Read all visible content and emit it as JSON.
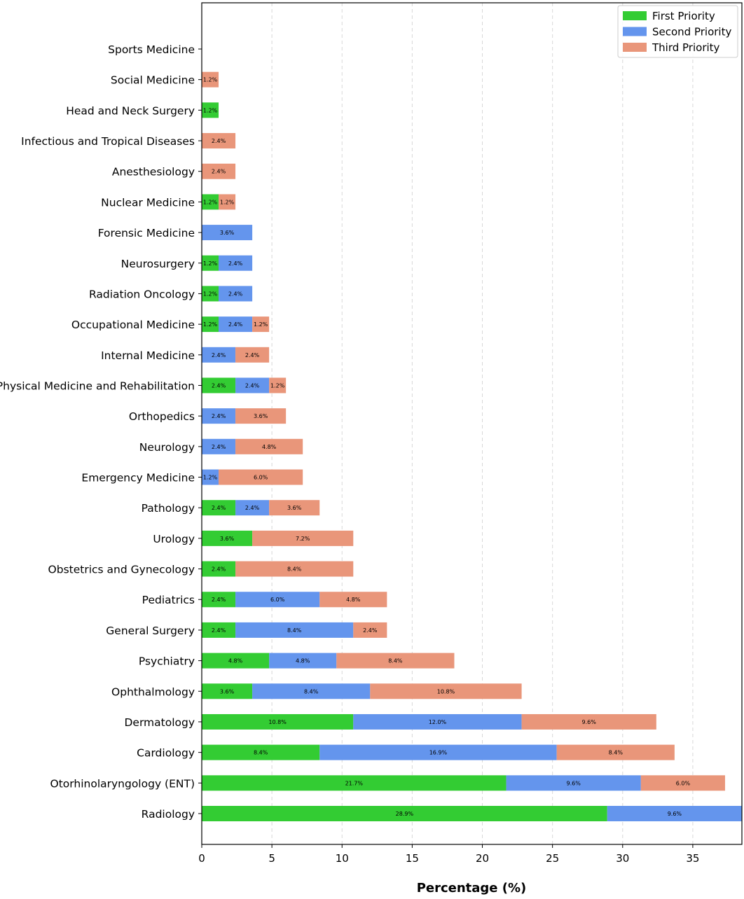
{
  "chart_data": {
    "type": "bar",
    "orientation": "horizontal",
    "stacked": true,
    "title": "",
    "xlabel": "Percentage (%)",
    "ylabel": "",
    "xlim": [
      0,
      38.5
    ],
    "xticks": [
      0,
      5,
      10,
      15,
      20,
      25,
      30,
      35
    ],
    "grid": "vertical-dashed",
    "legend_position": "top-right",
    "categories": [
      "Radiology",
      "Otorhinolaryngology (ENT)",
      "Cardiology",
      "Dermatology",
      "Ophthalmology",
      "Psychiatry",
      "General Surgery",
      "Pediatrics",
      "Obstetrics and Gynecology",
      "Urology",
      "Pathology",
      "Emergency Medicine",
      "Neurology",
      "Orthopedics",
      "Physical Medicine and Rehabilitation",
      "Internal Medicine",
      "Occupational Medicine",
      "Radiation Oncology",
      "Neurosurgery",
      "Forensic Medicine",
      "Nuclear Medicine",
      "Anesthesiology",
      "Infectious and Tropical Diseases",
      "Head and Neck Surgery",
      "Social Medicine",
      "Sports Medicine"
    ],
    "series": [
      {
        "name": "First Priority",
        "color": "#33cc33",
        "values": [
          28.9,
          21.7,
          8.4,
          10.8,
          3.6,
          4.8,
          2.4,
          2.4,
          2.4,
          3.6,
          2.4,
          0,
          0,
          0,
          2.4,
          0,
          1.2,
          1.2,
          1.2,
          0,
          1.2,
          0,
          0,
          1.2,
          0,
          0
        ],
        "labels": [
          "28.9%",
          "21.7%",
          "8.4%",
          "10.8%",
          "3.6%",
          "4.8%",
          "2.4%",
          "2.4%",
          "2.4%",
          "3.6%",
          "2.4%",
          "",
          "",
          "",
          "2.4%",
          "",
          "1.2%",
          "1.2%",
          "1.2%",
          "",
          "1.2%",
          "",
          "",
          "1.2%",
          "",
          ""
        ]
      },
      {
        "name": "Second Priority",
        "color": "#6495ed",
        "values": [
          9.6,
          9.6,
          16.9,
          12.0,
          8.4,
          4.8,
          8.4,
          6.0,
          0,
          0,
          2.4,
          1.2,
          2.4,
          2.4,
          2.4,
          2.4,
          2.4,
          2.4,
          2.4,
          3.6,
          0,
          0,
          0,
          0,
          0,
          0
        ],
        "labels": [
          "9.6%",
          "9.6%",
          "16.9%",
          "12.0%",
          "8.4%",
          "4.8%",
          "8.4%",
          "6.0%",
          "",
          "",
          "2.4%",
          "1.2%",
          "2.4%",
          "2.4%",
          "2.4%",
          "2.4%",
          "2.4%",
          "2.4%",
          "2.4%",
          "3.6%",
          "",
          "",
          "",
          "",
          "",
          ""
        ]
      },
      {
        "name": "Third Priority",
        "color": "#e9967a",
        "values": [
          0,
          6.0,
          8.4,
          9.6,
          10.8,
          8.4,
          2.4,
          4.8,
          8.4,
          7.2,
          3.6,
          6.0,
          4.8,
          3.6,
          1.2,
          2.4,
          1.2,
          0,
          0,
          0,
          1.2,
          2.4,
          2.4,
          0,
          1.2,
          0
        ],
        "labels": [
          "",
          "6.0%",
          "8.4%",
          "9.6%",
          "10.8%",
          "8.4%",
          "2.4%",
          "4.8%",
          "8.4%",
          "7.2%",
          "3.6%",
          "6.0%",
          "4.8%",
          "3.6%",
          "1.2%",
          "2.4%",
          "1.2%",
          "",
          "",
          "",
          "1.2%",
          "2.4%",
          "2.4%",
          "",
          "1.2%",
          ""
        ]
      }
    ]
  }
}
